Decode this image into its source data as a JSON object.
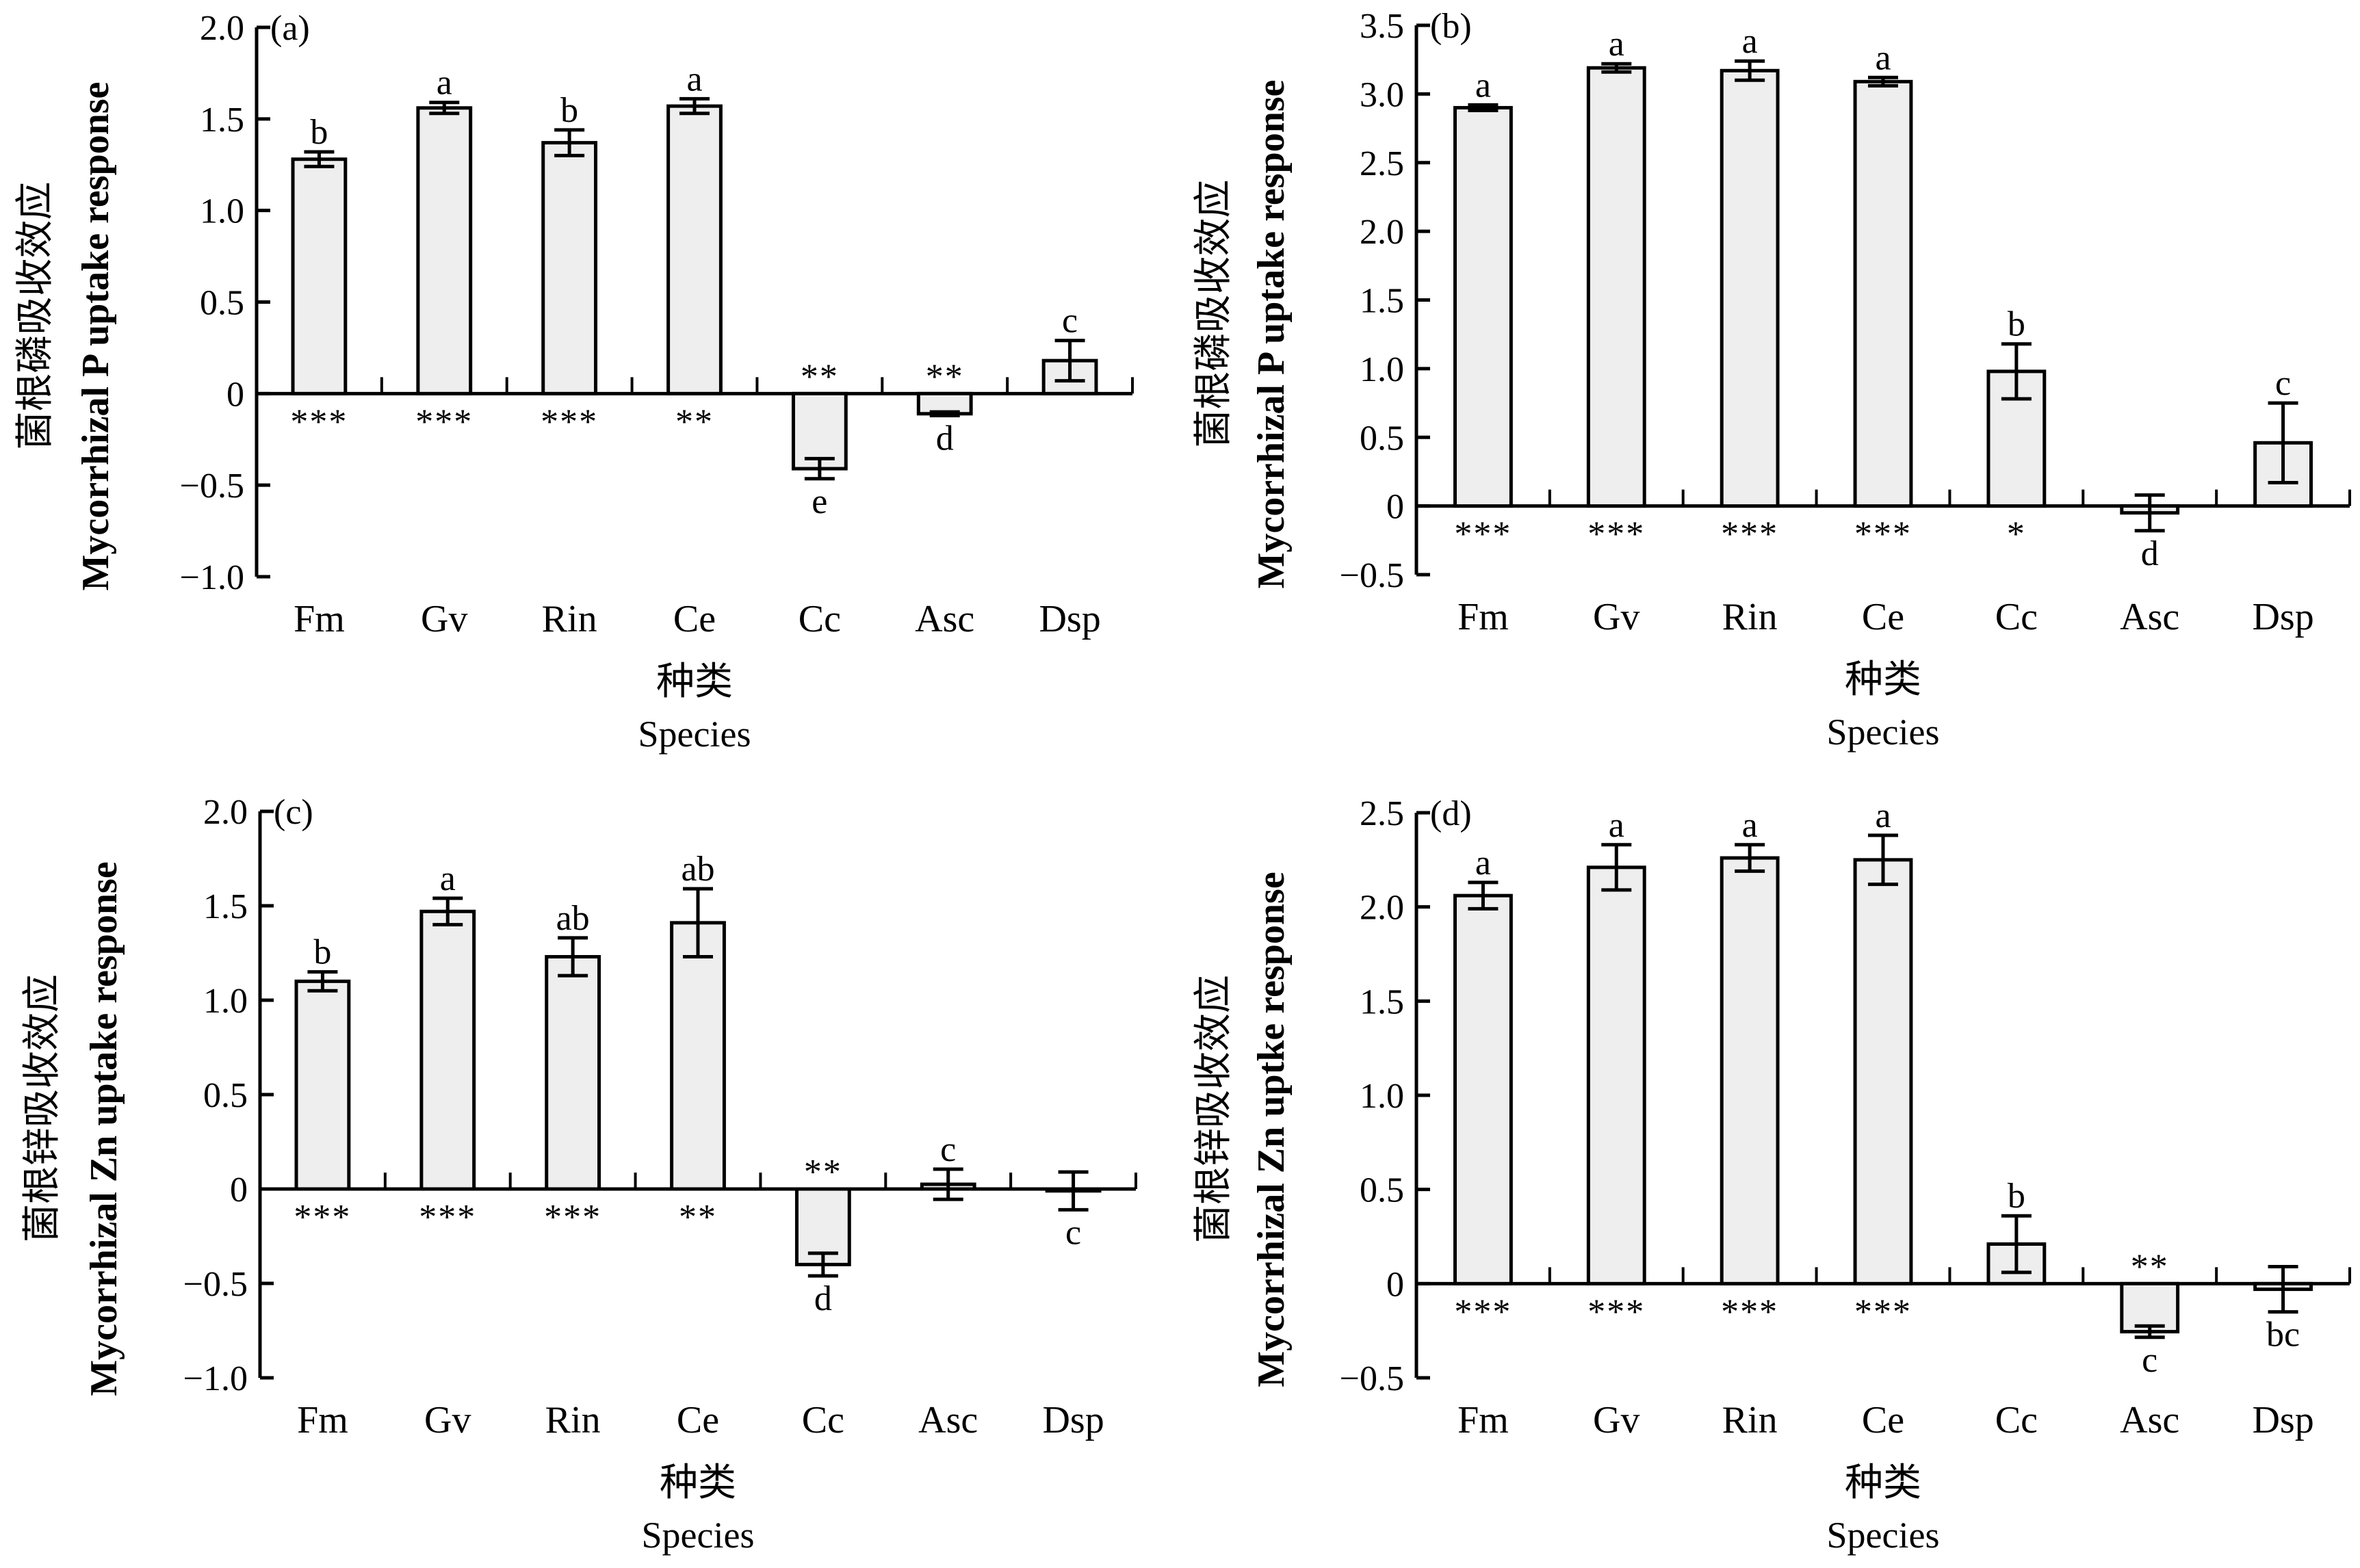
{
  "chart_data": [
    {
      "type": "bar",
      "panel_label": "(a)",
      "ylabel_cn": "菌根磷吸收效应",
      "ylabel_en": "Mycorrhizal P uptake response",
      "xlabel_cn": "种类",
      "xlabel_en": "Species",
      "categories": [
        "Fm",
        "Gv",
        "Rin",
        "Ce",
        "Cc",
        "Asc",
        "Dsp"
      ],
      "values": [
        1.28,
        1.56,
        1.37,
        1.57,
        -0.41,
        -0.11,
        0.18
      ],
      "errors": [
        0.04,
        0.03,
        0.07,
        0.04,
        0.055,
        0.01,
        0.11
      ],
      "letters": [
        "b",
        "a",
        "b",
        "a",
        "e",
        "d",
        "c"
      ],
      "significance": [
        "***",
        "***",
        "***",
        "**",
        "**",
        "**",
        ""
      ],
      "ylim": [
        -1.0,
        2.0
      ],
      "yticks": [
        -1.0,
        -0.5,
        0,
        0.5,
        1.0,
        1.5,
        2.0
      ],
      "ytick_labels": [
        "−1.0",
        "−0.5",
        "0",
        "0.5",
        "1.0",
        "1.5",
        "2.0"
      ],
      "bar_color": "#eeeeee"
    },
    {
      "type": "bar",
      "panel_label": "(b)",
      "ylabel_cn": "菌根磷吸收效应",
      "ylabel_en": "Mycorrhizal P uptake  response",
      "xlabel_cn": "种类",
      "xlabel_en": "Species",
      "categories": [
        "Fm",
        "Gv",
        "Rin",
        "Ce",
        "Cc",
        "Asc",
        "Dsp"
      ],
      "values": [
        2.9,
        3.19,
        3.17,
        3.09,
        0.98,
        -0.05,
        0.46
      ],
      "errors": [
        0.02,
        0.03,
        0.07,
        0.03,
        0.2,
        0.13,
        0.29
      ],
      "letters": [
        "a",
        "a",
        "a",
        "a",
        "b",
        "d",
        "c"
      ],
      "significance": [
        "***",
        "***",
        "***",
        "***",
        "*",
        "",
        ""
      ],
      "ylim": [
        -0.5,
        3.5
      ],
      "yticks": [
        -0.5,
        0,
        0.5,
        1.0,
        1.5,
        2.0,
        2.5,
        3.0,
        3.5
      ],
      "ytick_labels": [
        "−0.5",
        "0",
        "0.5",
        "1.0",
        "1.5",
        "2.0",
        "2.5",
        "3.0",
        "3.5"
      ],
      "bar_color": "#eeeeee"
    },
    {
      "type": "bar",
      "panel_label": "(c)",
      "ylabel_cn": "菌根锌吸收效应",
      "ylabel_en": "Mycorrhizal Zn uptake response",
      "xlabel_cn": "种类",
      "xlabel_en": "Species",
      "categories": [
        "Fm",
        "Gv",
        "Rin",
        "Ce",
        "Cc",
        "Asc",
        "Dsp"
      ],
      "values": [
        1.1,
        1.47,
        1.23,
        1.41,
        -0.4,
        0.025,
        -0.01
      ],
      "errors": [
        0.05,
        0.07,
        0.1,
        0.18,
        0.06,
        0.08,
        0.1
      ],
      "letters": [
        "b",
        "a",
        "ab",
        "ab",
        "d",
        "c",
        "c"
      ],
      "significance": [
        "***",
        "***",
        "***",
        "**",
        "**",
        "",
        ""
      ],
      "ylim": [
        -1.0,
        2.0
      ],
      "yticks": [
        -1.0,
        -0.5,
        0,
        0.5,
        1.0,
        1.5,
        2.0
      ],
      "ytick_labels": [
        "−1.0",
        "−0.5",
        "0",
        "0.5",
        "1.0",
        "1.5",
        "2.0"
      ],
      "bar_color": "#eeeeee"
    },
    {
      "type": "bar",
      "panel_label": "(d)",
      "ylabel_cn": "菌根锌吸收效应",
      "ylabel_en": "Mycorrhizal Zn uptke response",
      "xlabel_cn": "种类",
      "xlabel_en": "Species",
      "categories": [
        "Fm",
        "Gv",
        "Rin",
        "Ce",
        "Cc",
        "Asc",
        "Dsp"
      ],
      "values": [
        2.06,
        2.21,
        2.26,
        2.25,
        0.21,
        -0.255,
        -0.03
      ],
      "errors": [
        0.07,
        0.12,
        0.07,
        0.13,
        0.15,
        0.03,
        0.12
      ],
      "letters": [
        "a",
        "a",
        "a",
        "a",
        "b",
        "c",
        "bc"
      ],
      "significance": [
        "***",
        "***",
        "***",
        "***",
        "",
        "**",
        ""
      ],
      "ylim": [
        -0.5,
        2.5
      ],
      "yticks": [
        -0.5,
        0,
        0.5,
        1.0,
        1.5,
        2.0,
        2.5
      ],
      "ytick_labels": [
        "−0.5",
        "0",
        "0.5",
        "1.0",
        "1.5",
        "2.0",
        "2.5"
      ],
      "bar_color": "#eeeeee"
    }
  ]
}
